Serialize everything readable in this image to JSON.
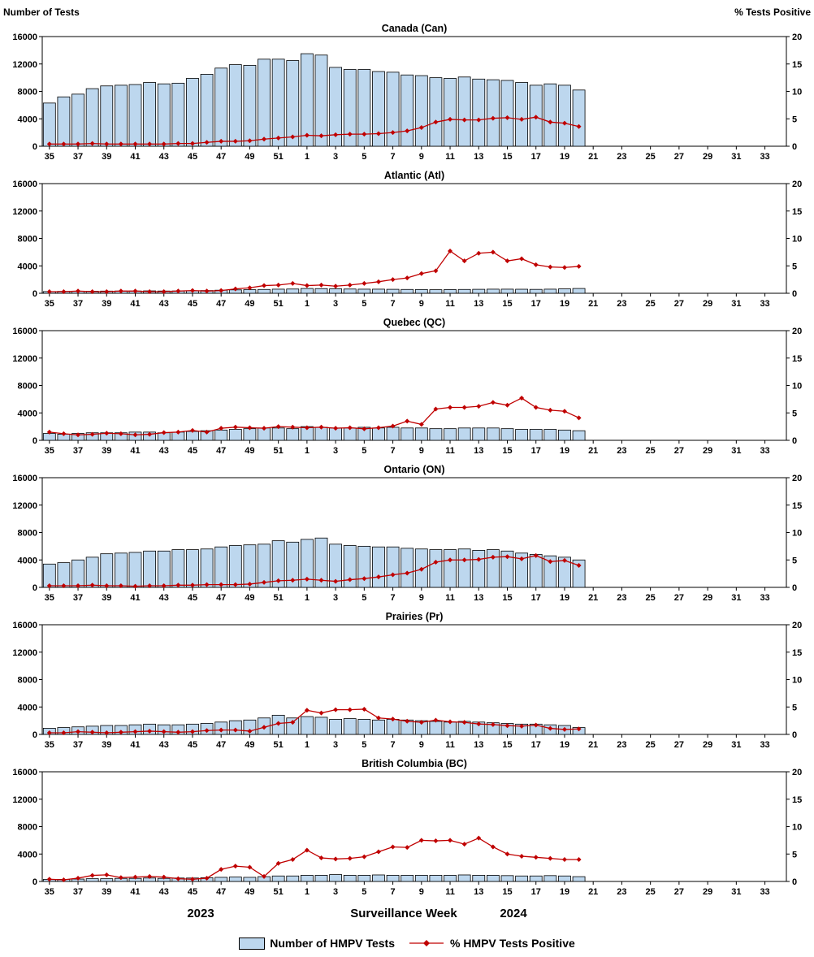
{
  "chart_data": {
    "type": "bar",
    "subtype": "combo-bar-line-small-multiples",
    "x_axis_title": "Surveillance Week",
    "year_labels": {
      "left": "2023",
      "right": "2024"
    },
    "legend": {
      "bars": "Number of HMPV Tests",
      "line": "% HMPV Tests Positive"
    },
    "left_axis": {
      "title": "Number of Tests",
      "min": 0,
      "max": 16000,
      "step": 4000
    },
    "right_axis": {
      "title": "% Tests Positive",
      "min": 0,
      "max": 20,
      "step": 5
    },
    "colors": {
      "bar_fill": "#BDD7EE",
      "bar_stroke": "#000000",
      "line": "#C00000"
    },
    "axis_slots": 52,
    "x_ticks": [
      35,
      37,
      39,
      41,
      43,
      45,
      47,
      49,
      51,
      1,
      3,
      5,
      7,
      9,
      11,
      13,
      15,
      17,
      19,
      21,
      23,
      25,
      27,
      29,
      31,
      33
    ],
    "data_weeks": [
      35,
      36,
      37,
      38,
      39,
      40,
      41,
      42,
      43,
      44,
      45,
      46,
      47,
      48,
      49,
      50,
      51,
      52,
      1,
      2,
      3,
      4,
      5,
      6,
      7,
      8,
      9,
      10,
      11,
      12,
      13,
      14,
      15,
      16,
      17,
      18,
      19,
      20
    ],
    "panels": [
      {
        "id": "canada",
        "title": "Canada (Can)",
        "tests": [
          6300,
          7200,
          7600,
          8400,
          8800,
          8900,
          9000,
          9300,
          9100,
          9200,
          9900,
          10500,
          11400,
          11900,
          11800,
          12700,
          12700,
          12500,
          13500,
          13300,
          11500,
          11200,
          11200,
          10900,
          10800,
          10400,
          10300,
          10000,
          9900,
          10100,
          9800,
          9700,
          9600,
          9300,
          8900,
          9100,
          8900,
          8200
        ],
        "pct_positive": [
          0.4,
          0.4,
          0.4,
          0.5,
          0.4,
          0.4,
          0.4,
          0.4,
          0.4,
          0.5,
          0.5,
          0.7,
          0.9,
          0.9,
          1.0,
          1.3,
          1.5,
          1.7,
          2.0,
          1.9,
          2.1,
          2.2,
          2.2,
          2.3,
          2.5,
          2.8,
          3.4,
          4.4,
          4.9,
          4.8,
          4.8,
          5.1,
          5.2,
          4.9,
          5.3,
          4.4,
          4.2,
          3.6
        ]
      },
      {
        "id": "atlantic",
        "title": "Atlantic (Atl)",
        "tests": [
          250,
          280,
          300,
          300,
          320,
          330,
          330,
          350,
          330,
          340,
          360,
          400,
          450,
          500,
          520,
          560,
          600,
          620,
          700,
          680,
          650,
          620,
          600,
          600,
          580,
          560,
          550,
          520,
          540,
          560,
          580,
          600,
          600,
          590,
          570,
          600,
          640,
          700
        ],
        "pct_positive": [
          0.3,
          0.3,
          0.4,
          0.3,
          0.3,
          0.4,
          0.4,
          0.3,
          0.3,
          0.4,
          0.5,
          0.4,
          0.5,
          0.8,
          1.0,
          1.4,
          1.5,
          1.8,
          1.4,
          1.5,
          1.3,
          1.5,
          1.8,
          2.1,
          2.5,
          2.8,
          3.6,
          4.1,
          7.7,
          5.9,
          7.3,
          7.5,
          5.9,
          6.3,
          5.2,
          4.8,
          4.7,
          4.9
        ]
      },
      {
        "id": "quebec",
        "title": "Quebec (QC)",
        "tests": [
          1000,
          900,
          1000,
          1100,
          1100,
          1100,
          1200,
          1200,
          1100,
          1200,
          1300,
          1400,
          1500,
          1600,
          1700,
          1800,
          1800,
          1700,
          2000,
          1900,
          1800,
          1800,
          1900,
          1800,
          1900,
          1800,
          1800,
          1700,
          1700,
          1800,
          1800,
          1800,
          1700,
          1600,
          1600,
          1600,
          1500,
          1400
        ],
        "pct_positive": [
          1.5,
          1.2,
          1.0,
          1.1,
          1.3,
          1.2,
          1.0,
          1.1,
          1.4,
          1.5,
          1.8,
          1.5,
          2.2,
          2.4,
          2.3,
          2.2,
          2.5,
          2.4,
          2.3,
          2.4,
          2.2,
          2.3,
          2.1,
          2.3,
          2.6,
          3.5,
          2.9,
          5.7,
          6.0,
          6.0,
          6.2,
          6.9,
          6.4,
          7.7,
          6.0,
          5.5,
          5.3,
          4.1
        ]
      },
      {
        "id": "ontario",
        "title": "Ontario (ON)",
        "tests": [
          3400,
          3600,
          4000,
          4400,
          4900,
          5000,
          5100,
          5300,
          5300,
          5500,
          5500,
          5600,
          5900,
          6100,
          6200,
          6300,
          6800,
          6600,
          7000,
          7200,
          6300,
          6100,
          6000,
          5900,
          5900,
          5700,
          5600,
          5500,
          5500,
          5600,
          5400,
          5500,
          5300,
          5000,
          4800,
          4600,
          4400,
          4000
        ],
        "pct_positive": [
          0.3,
          0.3,
          0.3,
          0.4,
          0.3,
          0.3,
          0.2,
          0.3,
          0.3,
          0.4,
          0.4,
          0.5,
          0.5,
          0.5,
          0.6,
          0.9,
          1.2,
          1.3,
          1.5,
          1.3,
          1.1,
          1.4,
          1.6,
          1.9,
          2.3,
          2.6,
          3.3,
          4.6,
          5.0,
          5.0,
          5.1,
          5.5,
          5.6,
          5.2,
          5.8,
          4.7,
          4.9,
          4.0
        ]
      },
      {
        "id": "prairies",
        "title": "Prairies (Pr)",
        "tests": [
          900,
          1000,
          1100,
          1200,
          1300,
          1300,
          1400,
          1500,
          1400,
          1400,
          1500,
          1600,
          1800,
          2000,
          2100,
          2400,
          2800,
          2400,
          2600,
          2500,
          2200,
          2300,
          2200,
          2100,
          2200,
          2100,
          2000,
          1900,
          1800,
          1900,
          1800,
          1700,
          1600,
          1500,
          1500,
          1400,
          1300,
          1000
        ],
        "pct_positive": [
          0.3,
          0.3,
          0.5,
          0.4,
          0.3,
          0.4,
          0.5,
          0.6,
          0.5,
          0.4,
          0.5,
          0.7,
          0.8,
          0.8,
          0.6,
          1.3,
          2.0,
          2.2,
          4.4,
          3.9,
          4.5,
          4.5,
          4.6,
          3.0,
          2.8,
          2.4,
          2.2,
          2.6,
          2.3,
          2.2,
          1.9,
          1.8,
          1.6,
          1.5,
          1.7,
          1.1,
          0.9,
          1.0
        ]
      },
      {
        "id": "bc",
        "title": "British Columbia (BC)",
        "tests": [
          300,
          300,
          350,
          400,
          400,
          450,
          450,
          500,
          450,
          500,
          500,
          550,
          600,
          650,
          600,
          700,
          800,
          800,
          900,
          900,
          1000,
          900,
          900,
          950,
          900,
          900,
          900,
          900,
          900,
          950,
          900,
          900,
          850,
          800,
          800,
          850,
          800,
          700
        ],
        "pct_positive": [
          0.4,
          0.3,
          0.6,
          1.1,
          1.2,
          0.7,
          0.8,
          0.9,
          0.8,
          0.5,
          0.4,
          0.6,
          2.2,
          2.8,
          2.6,
          0.9,
          3.3,
          4.0,
          5.7,
          4.3,
          4.1,
          4.2,
          4.5,
          5.4,
          6.3,
          6.2,
          7.5,
          7.4,
          7.5,
          6.8,
          7.9,
          6.3,
          5.0,
          4.6,
          4.4,
          4.2,
          4.0,
          4.0
        ]
      }
    ]
  }
}
